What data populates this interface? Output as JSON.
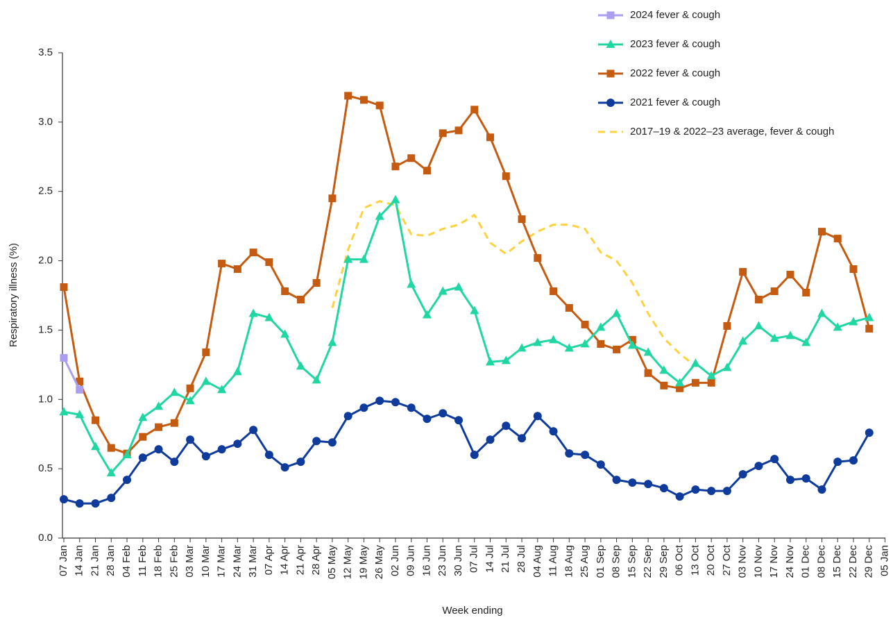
{
  "chart_data": {
    "type": "line",
    "x_label": "Week ending",
    "y_label": "Respiratory illness (%)",
    "categories": [
      "07 Jan",
      "14 Jan",
      "21 Jan",
      "28 Jan",
      "04 Feb",
      "11 Feb",
      "18 Feb",
      "25 Feb",
      "03 Mar",
      "10 Mar",
      "17 Mar",
      "24 Mar",
      "31 Mar",
      "07 Apr",
      "14 Apr",
      "21 Apr",
      "28 Apr",
      "05 May",
      "12 May",
      "19 May",
      "26 May",
      "02 Jun",
      "09 Jun",
      "16 Jun",
      "23 Jun",
      "30 Jun",
      "07 Jul",
      "14 Jul",
      "21 Jul",
      "28 Jul",
      "04 Aug",
      "11 Aug",
      "18 Aug",
      "25 Aug",
      "01 Sep",
      "08 Sep",
      "15 Sep",
      "22 Sep",
      "29 Sep",
      "06 Oct",
      "13 Oct",
      "20 Oct",
      "27 Oct",
      "03 Nov",
      "10 Nov",
      "17 Nov",
      "24 Nov",
      "01 Dec",
      "08 Dec",
      "15 Dec",
      "22 Dec",
      "29 Dec",
      "05 Jan"
    ],
    "ylim": [
      0,
      3.5
    ],
    "yticks": [
      {
        "value": 0,
        "label": "0.0"
      },
      0.5,
      {
        "value": 1,
        "label": "1.0"
      },
      1.5,
      {
        "value": 2,
        "label": "2.0"
      },
      2.5,
      {
        "value": 3,
        "label": "3.0"
      },
      3.5
    ],
    "grid": false,
    "legend": "top-right",
    "series": [
      {
        "name": "2024 fever & cough",
        "color": "#a99ef0",
        "marker": "square",
        "values": [
          1.3,
          1.07,
          null,
          null,
          null,
          null,
          null,
          null,
          null,
          null,
          null,
          null,
          null,
          null,
          null,
          null,
          null,
          null,
          null,
          null,
          null,
          null,
          null,
          null,
          null,
          null,
          null,
          null,
          null,
          null,
          null,
          null,
          null,
          null,
          null,
          null,
          null,
          null,
          null,
          null,
          null,
          null,
          null,
          null,
          null,
          null,
          null,
          null,
          null,
          null,
          null,
          null,
          null
        ]
      },
      {
        "name": "2023 fever & cough",
        "color": "#20d6a2",
        "marker": "triangle",
        "values": [
          0.91,
          0.89,
          0.66,
          0.47,
          0.6,
          0.87,
          0.95,
          1.05,
          0.99,
          1.13,
          1.07,
          1.2,
          1.62,
          1.59,
          1.47,
          1.24,
          1.14,
          1.41,
          2.01,
          2.01,
          2.32,
          2.44,
          1.83,
          1.61,
          1.78,
          1.81,
          1.64,
          1.27,
          1.28,
          1.37,
          1.41,
          1.43,
          1.37,
          1.4,
          1.52,
          1.62,
          1.39,
          1.34,
          1.21,
          1.12,
          1.26,
          1.17,
          1.23,
          1.42,
          1.53,
          1.44,
          1.46,
          1.41,
          1.62,
          1.52,
          1.56,
          1.59,
          null
        ]
      },
      {
        "name": "2022 fever & cough",
        "color": "#c55a11",
        "marker": "square",
        "values": [
          1.81,
          1.13,
          0.85,
          0.65,
          0.61,
          0.73,
          0.8,
          0.83,
          1.08,
          1.34,
          1.98,
          1.94,
          2.06,
          1.99,
          1.78,
          1.72,
          1.84,
          2.45,
          3.19,
          3.16,
          3.12,
          2.68,
          2.74,
          2.65,
          2.92,
          2.94,
          3.09,
          2.89,
          2.61,
          2.3,
          2.02,
          1.78,
          1.66,
          1.54,
          1.4,
          1.36,
          1.43,
          1.19,
          1.1,
          1.08,
          1.12,
          1.12,
          1.53,
          1.92,
          1.72,
          1.78,
          1.9,
          1.77,
          2.21,
          2.16,
          1.94,
          1.51,
          null
        ]
      },
      {
        "name": "2021 fever & cough",
        "color": "#0e3b9c",
        "marker": "circle",
        "values": [
          0.28,
          0.25,
          0.25,
          0.29,
          0.42,
          0.58,
          0.64,
          0.55,
          0.71,
          0.59,
          0.64,
          0.68,
          0.78,
          0.6,
          0.51,
          0.55,
          0.7,
          0.69,
          0.88,
          0.94,
          0.99,
          0.98,
          0.94,
          0.86,
          0.9,
          0.85,
          0.6,
          0.71,
          0.81,
          0.72,
          0.88,
          0.77,
          0.61,
          0.6,
          0.53,
          0.42,
          0.4,
          0.39,
          0.36,
          0.3,
          0.35,
          0.34,
          0.34,
          0.46,
          0.52,
          0.57,
          0.42,
          0.43,
          0.35,
          0.55,
          0.56,
          0.76,
          null
        ]
      },
      {
        "name": "2017–19 & 2022–23 average, fever & cough",
        "color": "#fdd13f",
        "marker": "none",
        "dashed": true,
        "values": [
          null,
          null,
          null,
          null,
          null,
          null,
          null,
          null,
          null,
          null,
          null,
          null,
          null,
          null,
          null,
          null,
          null,
          1.66,
          2.08,
          2.38,
          2.43,
          2.4,
          2.19,
          2.18,
          2.23,
          2.26,
          2.33,
          2.13,
          2.05,
          2.14,
          2.21,
          2.26,
          2.26,
          2.23,
          2.06,
          2.0,
          1.84,
          1.62,
          1.44,
          1.33,
          1.24,
          null,
          null,
          null,
          null,
          null,
          null,
          null,
          null,
          null,
          null,
          null,
          null
        ]
      }
    ]
  }
}
